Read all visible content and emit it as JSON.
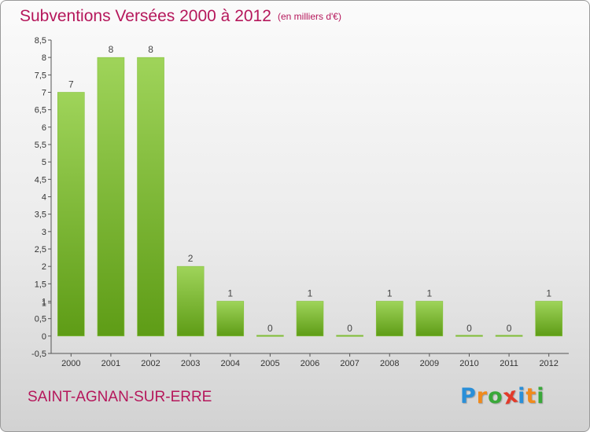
{
  "header": {
    "title": "Subventions Versées 2000 à 2012",
    "subtitle": "(en milliers d'€)"
  },
  "commune": "SAINT-AGNAN-SUR-ERRE",
  "logo": {
    "letters": [
      "P",
      "r",
      "o",
      "x",
      "i",
      "t",
      "i"
    ],
    "colors": [
      "#2a8fd8",
      "#f08a1c",
      "#3aa83a",
      "#e23a2a",
      "#2a8fd8",
      "#f08a1c",
      "#3aa83a"
    ]
  },
  "colors": {
    "bar_top": "#9fd45a",
    "bar_bottom": "#5e9c16",
    "text_accent": "#b5175b"
  },
  "chart_data": {
    "type": "bar",
    "title": "Subventions Versées 2000 à 2012",
    "categories": [
      "2000",
      "2001",
      "2002",
      "2003",
      "2004",
      "2005",
      "2006",
      "2007",
      "2008",
      "2009",
      "2010",
      "2011",
      "2012"
    ],
    "values": [
      7,
      8,
      8,
      2,
      1,
      0,
      1,
      0,
      1,
      1,
      0,
      0,
      1
    ],
    "data_labels": [
      "7",
      "8",
      "8",
      "2",
      "1",
      "0",
      "1",
      "0",
      "1",
      "1",
      "0",
      "0",
      "1"
    ],
    "ylim": [
      -0.5,
      8.5
    ],
    "yticks": [
      "-0,5",
      "0",
      "0,5",
      "1",
      "1",
      "1,5",
      "2",
      "2,5",
      "3",
      "3,5",
      "4",
      "4,5",
      "5",
      "5,5",
      "6",
      "6,5",
      "7",
      "7,5",
      "8",
      "8,5"
    ],
    "ytick_values": [
      -0.5,
      0,
      0.5,
      0.95,
      1,
      1.5,
      2,
      2.5,
      3,
      3.5,
      4,
      4.5,
      5,
      5.5,
      6,
      6.5,
      7,
      7.5,
      8,
      8.5
    ],
    "grid": false
  }
}
